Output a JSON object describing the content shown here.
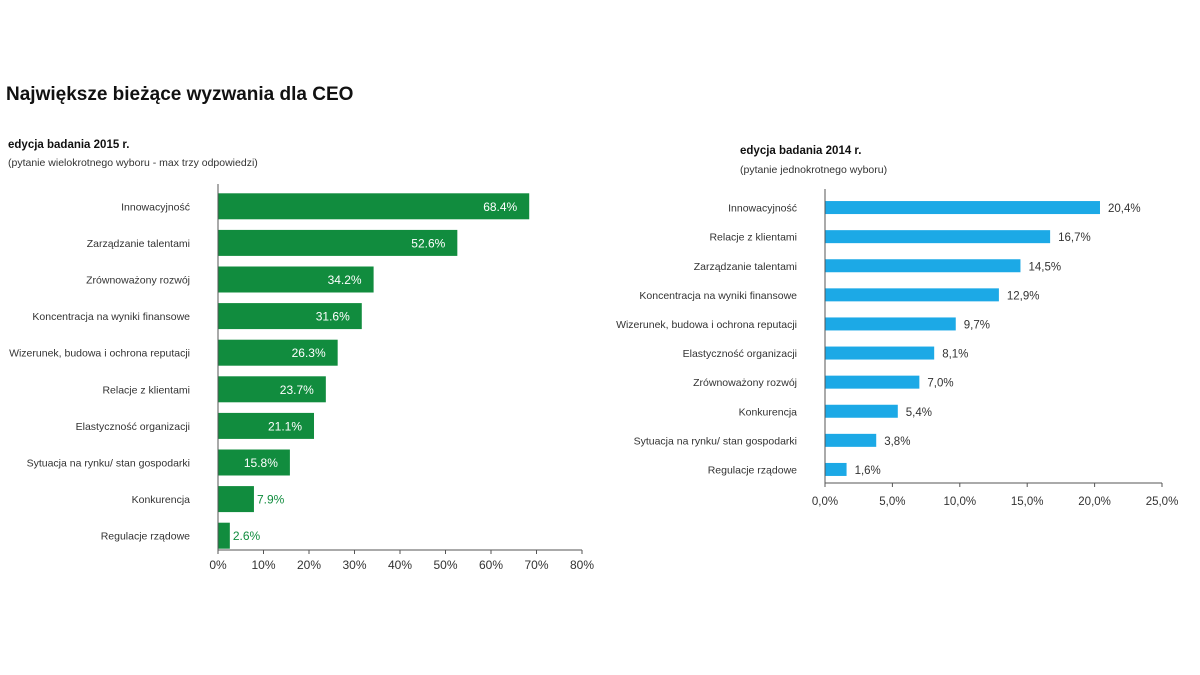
{
  "page": {
    "title": "Największe bieżące wyzwania dla CEO"
  },
  "colors": {
    "green": "#118c3e",
    "blue": "#1ca9e6",
    "axis": "#555555",
    "text": "#333333"
  },
  "chart_data": [
    {
      "type": "bar",
      "orientation": "horizontal",
      "title": "edycja badania 2015 r.",
      "subtitle": "(pytanie wielokrotnego wyboru - max trzy odpowiedzi)",
      "categories": [
        "Innowacyjność",
        "Zarządzanie talentami",
        "Zrównoważony rozwój",
        "Koncentracja na wyniki finansowe",
        "Wizerunek, budowa i ochrona reputacji",
        "Relacje z klientami",
        "Elastyczność organizacji",
        "Sytuacja na rynku/ stan gospodarki",
        "Konkurencja",
        "Regulacje rządowe"
      ],
      "values": [
        68.4,
        52.6,
        34.2,
        31.6,
        26.3,
        23.7,
        21.1,
        15.8,
        7.9,
        2.6
      ],
      "value_labels": [
        "68.4%",
        "52.6%",
        "34.2%",
        "31.6%",
        "26.3%",
        "23.7%",
        "21.1%",
        "15.8%",
        "7.9%",
        "2.6%"
      ],
      "xlim": [
        0,
        80
      ],
      "xticks": [
        0,
        10,
        20,
        30,
        40,
        50,
        60,
        70,
        80
      ],
      "xtick_labels": [
        "0%",
        "10%",
        "20%",
        "30%",
        "40%",
        "50%",
        "60%",
        "70%",
        "80%"
      ],
      "grid": false,
      "color": "#118c3e"
    },
    {
      "type": "bar",
      "orientation": "horizontal",
      "title": "edycja badania 2014 r.",
      "subtitle": "(pytanie jednokrotnego wyboru)",
      "categories": [
        "Innowacyjność",
        "Relacje z klientami",
        "Zarządzanie talentami",
        "Koncentracja na wyniki finansowe",
        "Wizerunek, budowa i ochrona reputacji",
        "Elastyczność organizacji",
        "Zrównoważony rozwój",
        "Konkurencja",
        "Sytuacja na rynku/ stan gospodarki",
        "Regulacje rządowe"
      ],
      "values": [
        20.4,
        16.7,
        14.5,
        12.9,
        9.7,
        8.1,
        7.0,
        5.4,
        3.8,
        1.6
      ],
      "value_labels": [
        "20,4%",
        "16,7%",
        "14,5%",
        "12,9%",
        "9,7%",
        "8,1%",
        "7,0%",
        "5,4%",
        "3,8%",
        "1,6%"
      ],
      "xlim": [
        0,
        25
      ],
      "xticks": [
        0,
        5,
        10,
        15,
        20,
        25
      ],
      "xtick_labels": [
        "0,0%",
        "5,0%",
        "10,0%",
        "15,0%",
        "20,0%",
        "25,0%"
      ],
      "grid": false,
      "color": "#1ca9e6"
    }
  ]
}
